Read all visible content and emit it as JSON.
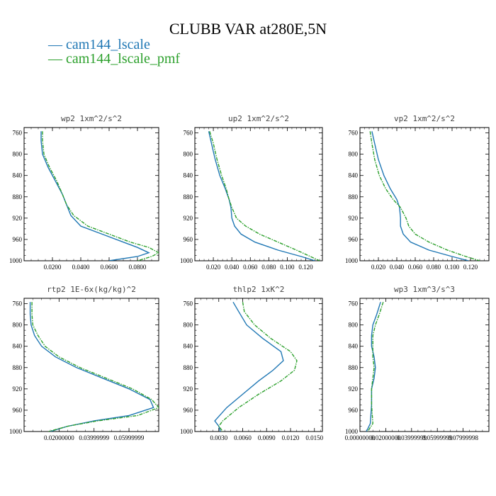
{
  "title": "CLUBB VAR at280E,5N",
  "colors": {
    "blue": "#1f77b4",
    "green": "#2ca02c"
  },
  "legend": [
    {
      "label": "cam144_lscale",
      "color": "#1f77b4"
    },
    {
      "label": "cam144_lscale_pmf",
      "color": "#2ca02c"
    }
  ],
  "chart_data": [
    {
      "type": "line",
      "title": "wp2  1xm^2/s^2",
      "xlim": [
        0,
        0.095
      ],
      "ylim": [
        1000,
        750
      ],
      "xticks": [
        0.02,
        0.04,
        0.06,
        0.08
      ],
      "xticklabels": [
        "0.0200",
        "0.0400",
        "0.0600",
        "0.0800"
      ],
      "yticks": [
        760,
        800,
        840,
        880,
        920,
        960,
        1000
      ],
      "series": [
        {
          "name": "cam144_lscale",
          "x": [
            0.012,
            0.012,
            0.013,
            0.017,
            0.022,
            0.027,
            0.03,
            0.033,
            0.04,
            0.055,
            0.07,
            0.08,
            0.088,
            0.08,
            0.06
          ],
          "y": [
            757,
            775,
            800,
            825,
            850,
            875,
            895,
            915,
            935,
            950,
            965,
            975,
            985,
            992,
            1000
          ]
        },
        {
          "name": "cam144_lscale_pmf",
          "x": [
            0.013,
            0.013,
            0.014,
            0.018,
            0.023,
            0.027,
            0.03,
            0.035,
            0.045,
            0.06,
            0.075,
            0.088,
            0.095,
            0.09,
            0.08
          ],
          "y": [
            757,
            775,
            800,
            825,
            850,
            875,
            895,
            915,
            935,
            950,
            965,
            975,
            985,
            992,
            1000
          ]
        }
      ]
    },
    {
      "type": "line",
      "title": "up2  1xm^2/s^2",
      "xlim": [
        0,
        0.138
      ],
      "ylim": [
        1000,
        750
      ],
      "xticks": [
        0.02,
        0.04,
        0.06,
        0.08,
        0.1,
        0.12
      ],
      "xticklabels": [
        "0.020",
        "0.040",
        "0.060",
        "0.080",
        "0.100",
        "0.120"
      ],
      "yticks": [
        760,
        800,
        840,
        880,
        920,
        960,
        1000
      ],
      "series": [
        {
          "name": "cam144_lscale",
          "x": [
            0.015,
            0.018,
            0.022,
            0.027,
            0.033,
            0.037,
            0.039,
            0.04,
            0.043,
            0.05,
            0.065,
            0.09,
            0.115,
            0.13
          ],
          "y": [
            757,
            780,
            810,
            840,
            865,
            885,
            900,
            920,
            935,
            950,
            965,
            980,
            992,
            1000
          ]
        },
        {
          "name": "cam144_lscale_pmf",
          "x": [
            0.016,
            0.02,
            0.024,
            0.029,
            0.034,
            0.037,
            0.04,
            0.045,
            0.055,
            0.07,
            0.09,
            0.11,
            0.125,
            0.135
          ],
          "y": [
            757,
            780,
            810,
            840,
            865,
            885,
            900,
            920,
            935,
            950,
            965,
            980,
            992,
            1000
          ]
        }
      ]
    },
    {
      "type": "line",
      "title": "vp2  1xm^2/s^2",
      "xlim": [
        0,
        0.14
      ],
      "ylim": [
        1000,
        750
      ],
      "xticks": [
        0.02,
        0.04,
        0.06,
        0.08,
        0.1,
        0.12
      ],
      "xticklabels": [
        "0.020",
        "0.040",
        "0.060",
        "0.080",
        "0.100",
        "0.120"
      ],
      "yticks": [
        760,
        800,
        840,
        880,
        920,
        960,
        1000
      ],
      "series": [
        {
          "name": "cam144_lscale",
          "x": [
            0.013,
            0.016,
            0.02,
            0.026,
            0.033,
            0.04,
            0.043,
            0.044,
            0.044,
            0.047,
            0.055,
            0.075,
            0.1,
            0.118
          ],
          "y": [
            757,
            780,
            810,
            840,
            865,
            885,
            900,
            920,
            935,
            950,
            965,
            980,
            992,
            1000
          ]
        },
        {
          "name": "cam144_lscale_pmf",
          "x": [
            0.011,
            0.013,
            0.016,
            0.021,
            0.028,
            0.036,
            0.044,
            0.05,
            0.053,
            0.06,
            0.075,
            0.095,
            0.115,
            0.13
          ],
          "y": [
            757,
            780,
            810,
            840,
            865,
            885,
            900,
            920,
            935,
            950,
            965,
            980,
            992,
            1000
          ]
        }
      ]
    },
    {
      "type": "line",
      "title": "rtp2  1E-6x(kg/kg)^2",
      "xlim": [
        0,
        0.077
      ],
      "ylim": [
        1000,
        750
      ],
      "xticks": [
        0.02,
        0.04,
        0.06
      ],
      "xticklabels": [
        "0.02000000",
        "0.03999999",
        "0.05999999"
      ],
      "yticks": [
        760,
        800,
        840,
        880,
        920,
        960,
        1000
      ],
      "series": [
        {
          "name": "cam144_lscale",
          "x": [
            0.0035,
            0.0035,
            0.004,
            0.006,
            0.01,
            0.018,
            0.03,
            0.045,
            0.06,
            0.072,
            0.074,
            0.06,
            0.04,
            0.025,
            0.015
          ],
          "y": [
            757,
            780,
            800,
            820,
            840,
            860,
            880,
            900,
            920,
            940,
            955,
            970,
            980,
            990,
            1000
          ]
        },
        {
          "name": "cam144_lscale_pmf",
          "x": [
            0.0045,
            0.0045,
            0.005,
            0.008,
            0.012,
            0.02,
            0.032,
            0.047,
            0.062,
            0.073,
            0.077,
            0.065,
            0.042,
            0.025,
            0.014
          ],
          "y": [
            757,
            780,
            800,
            820,
            840,
            860,
            880,
            900,
            920,
            940,
            955,
            970,
            980,
            990,
            1000
          ]
        }
      ]
    },
    {
      "type": "line",
      "title": "thlp2  1xK^2",
      "xlim": [
        0,
        0.016
      ],
      "ylim": [
        1000,
        750
      ],
      "xticks": [
        0.003,
        0.006,
        0.009,
        0.012,
        0.015
      ],
      "xticklabels": [
        "0.0030",
        "0.0060",
        "0.0090",
        "0.0120",
        "0.0150"
      ],
      "yticks": [
        760,
        800,
        840,
        880,
        920,
        960,
        1000
      ],
      "series": [
        {
          "name": "cam144_lscale",
          "x": [
            0.0048,
            0.0055,
            0.0065,
            0.0085,
            0.0108,
            0.0111,
            0.0098,
            0.008,
            0.006,
            0.004,
            0.0025,
            0.003,
            0.0032
          ],
          "y": [
            757,
            775,
            800,
            825,
            850,
            867,
            885,
            905,
            930,
            955,
            980,
            990,
            1000
          ]
        },
        {
          "name": "cam144_lscale_pmf",
          "x": [
            0.006,
            0.0062,
            0.0075,
            0.0095,
            0.012,
            0.0128,
            0.0125,
            0.0108,
            0.008,
            0.0055,
            0.0035,
            0.003,
            0.0035
          ],
          "y": [
            757,
            775,
            800,
            825,
            850,
            867,
            885,
            905,
            930,
            955,
            980,
            990,
            1000
          ]
        }
      ]
    },
    {
      "type": "line",
      "title": "wp3  1xm^3/s^3",
      "xlim": [
        0,
        0.1
      ],
      "ylim": [
        1000,
        750
      ],
      "xticks": [
        0,
        0.02,
        0.04,
        0.06,
        0.08
      ],
      "xticklabels": [
        "0.00000000",
        "0.02000000",
        "0.03999999",
        "0.05999999",
        "0.07999998"
      ],
      "yticks": [
        760,
        800,
        840,
        880,
        920,
        960,
        1000
      ],
      "series": [
        {
          "name": "cam144_lscale",
          "x": [
            0.016,
            0.013,
            0.01,
            0.009,
            0.009,
            0.011,
            0.012,
            0.011,
            0.009,
            0.009,
            0.008,
            0.005
          ],
          "y": [
            757,
            780,
            800,
            820,
            840,
            860,
            880,
            900,
            920,
            950,
            985,
            1000
          ]
        },
        {
          "name": "cam144_lscale_pmf",
          "x": [
            0.018,
            0.015,
            0.012,
            0.01,
            0.01,
            0.01,
            0.011,
            0.01,
            0.009,
            0.009,
            0.01,
            0.006
          ],
          "y": [
            757,
            780,
            800,
            820,
            840,
            860,
            880,
            900,
            920,
            950,
            985,
            1000
          ]
        }
      ]
    }
  ]
}
